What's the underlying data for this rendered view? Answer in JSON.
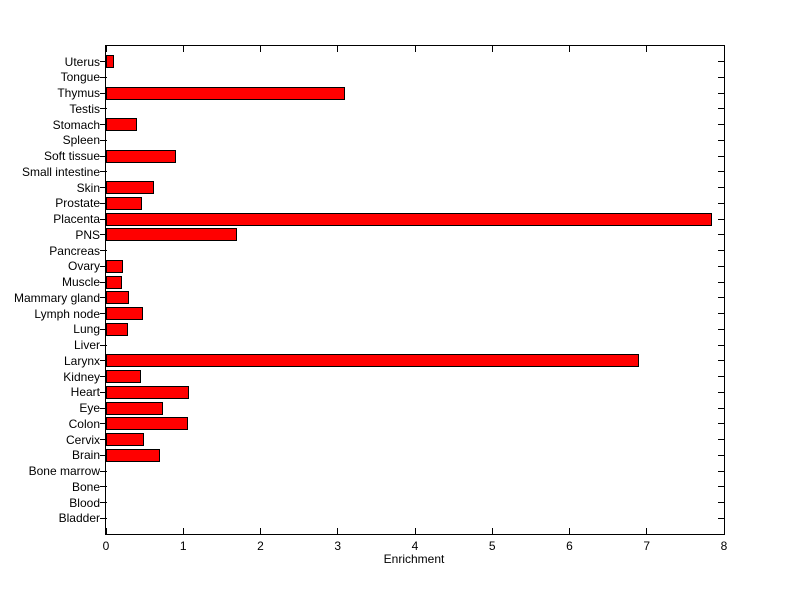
{
  "chart_data": {
    "type": "bar",
    "orientation": "horizontal",
    "title": "",
    "xlabel": "Enrichment",
    "ylabel": "",
    "xlim": [
      0,
      8
    ],
    "xticks": [
      0,
      1,
      2,
      3,
      4,
      5,
      6,
      7,
      8
    ],
    "grid": false,
    "legend": null,
    "bar_color": "#ff0000",
    "bar_edge_color": "#000000",
    "categories": [
      "Uterus",
      "Tongue",
      "Thymus",
      "Testis",
      "Stomach",
      "Spleen",
      "Soft tissue",
      "Small intestine",
      "Skin",
      "Prostate",
      "Placenta",
      "PNS",
      "Pancreas",
      "Ovary",
      "Muscle",
      "Mammary gland",
      "Lymph node",
      "Lung",
      "Liver",
      "Larynx",
      "Kidney",
      "Heart",
      "Eye",
      "Colon",
      "Cervix",
      "Brain",
      "Bone marrow",
      "Bone",
      "Blood",
      "Bladder"
    ],
    "values": [
      0.1,
      0,
      3.1,
      0,
      0.4,
      0,
      0.9,
      0,
      0.62,
      0.47,
      7.85,
      1.7,
      0,
      0.22,
      0.21,
      0.3,
      0.48,
      0.28,
      0,
      6.9,
      0.45,
      1.07,
      0.74,
      1.06,
      0.49,
      0.7,
      0,
      0,
      0,
      0
    ]
  }
}
